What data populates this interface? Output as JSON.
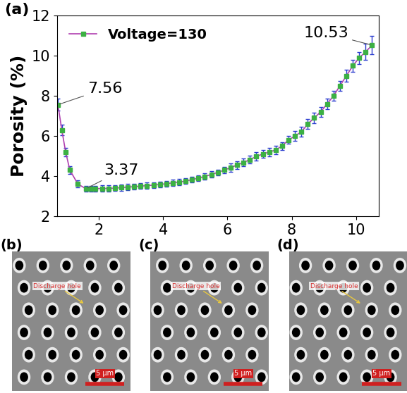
{
  "chart_data": {
    "type": "line",
    "panel_label": "(a)",
    "y_label": "Porosity (%)",
    "x": [
      0.73,
      0.85,
      0.97,
      1.1,
      1.35,
      1.6,
      1.75,
      1.9,
      2.1,
      2.3,
      2.5,
      2.7,
      2.9,
      3.1,
      3.3,
      3.5,
      3.7,
      3.9,
      4.1,
      4.3,
      4.5,
      4.7,
      4.9,
      5.1,
      5.3,
      5.5,
      5.7,
      5.9,
      6.1,
      6.3,
      6.5,
      6.7,
      6.9,
      7.1,
      7.3,
      7.5,
      7.7,
      7.9,
      8.1,
      8.3,
      8.5,
      8.7,
      8.9,
      9.1,
      9.3,
      9.5,
      9.7,
      9.9,
      10.1,
      10.3,
      10.5
    ],
    "series": [
      {
        "name": "Voltage=130",
        "color": "#b040b0",
        "marker": "square",
        "line_style": "solid",
        "values": [
          7.56,
          6.3,
          5.2,
          4.3,
          3.6,
          3.37,
          3.37,
          3.37,
          3.38,
          3.38,
          3.4,
          3.42,
          3.45,
          3.47,
          3.5,
          3.52,
          3.55,
          3.58,
          3.62,
          3.66,
          3.7,
          3.75,
          3.82,
          3.9,
          3.98,
          4.08,
          4.18,
          4.3,
          4.42,
          4.55,
          4.68,
          4.82,
          4.98,
          5.1,
          5.2,
          5.3,
          5.5,
          5.8,
          6.0,
          6.2,
          6.6,
          6.9,
          7.2,
          7.6,
          8.0,
          8.5,
          9.0,
          9.5,
          9.9,
          10.2,
          10.53
        ],
        "errors": [
          0.3,
          0.25,
          0.22,
          0.2,
          0.18,
          0.15,
          0.15,
          0.15,
          0.15,
          0.15,
          0.15,
          0.15,
          0.15,
          0.15,
          0.15,
          0.15,
          0.15,
          0.15,
          0.15,
          0.15,
          0.15,
          0.15,
          0.15,
          0.15,
          0.15,
          0.15,
          0.15,
          0.15,
          0.2,
          0.2,
          0.2,
          0.2,
          0.2,
          0.2,
          0.2,
          0.2,
          0.2,
          0.2,
          0.25,
          0.25,
          0.25,
          0.25,
          0.25,
          0.25,
          0.25,
          0.25,
          0.3,
          0.3,
          0.3,
          0.4,
          0.45
        ]
      }
    ],
    "annotations": [
      {
        "text": "7.56",
        "x": 0.73,
        "y": 7.56
      },
      {
        "text": "3.37",
        "x": 1.6,
        "y": 3.37
      },
      {
        "text": "10.53",
        "x": 10.5,
        "y": 10.53
      }
    ],
    "xlim": [
      0.7,
      10.7
    ],
    "xticks": [
      2,
      4,
      6,
      8,
      10
    ],
    "ylim": [
      2,
      12
    ],
    "yticks": [
      2,
      4,
      6,
      8,
      10,
      12
    ],
    "legend": "upper left",
    "grid": false
  },
  "image_panels": [
    {
      "label": "(b)",
      "annotation": "Discharge hole",
      "scale_bar": "5 μm"
    },
    {
      "label": "(c)",
      "annotation": "Discharge hole",
      "scale_bar": "5 μm"
    },
    {
      "label": "(d)",
      "annotation": "Discharge hole",
      "scale_bar": "5 μm"
    }
  ]
}
